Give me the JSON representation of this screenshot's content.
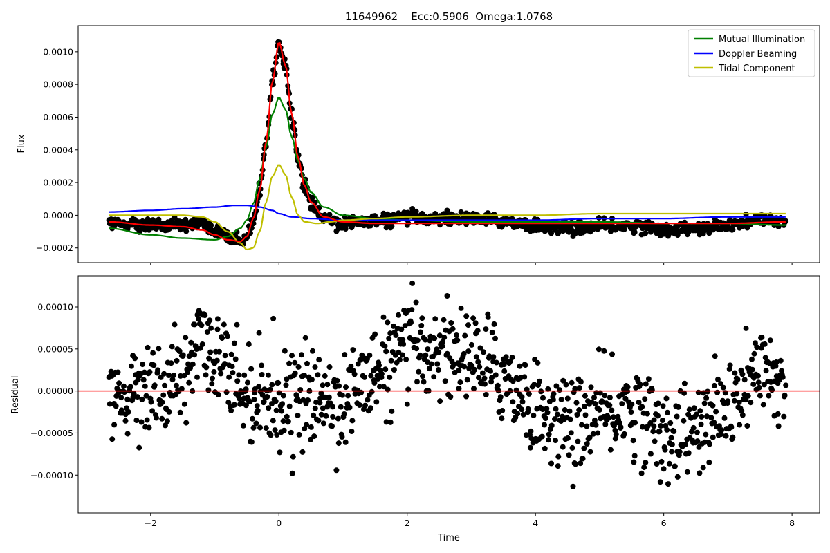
{
  "chart_data": [
    {
      "type": "scatter",
      "title": "11649962    Ecc:0.5906  Omega:1.0768",
      "ylabel": "Flux",
      "xlim": [
        -3.13,
        8.43
      ],
      "ylim": [
        -0.00029,
        0.00116
      ],
      "xticks": [
        -2,
        0,
        2,
        4,
        6,
        8
      ],
      "yticks": [
        -0.0002,
        0.0,
        0.0002,
        0.0004,
        0.0006,
        0.0008,
        0.001
      ],
      "ytick_labels": [
        "−0.0002",
        "0.0000",
        "0.0002",
        "0.0004",
        "0.0006",
        "0.0008",
        "0.0010"
      ],
      "legend_position": "top-right",
      "grid": false,
      "observed_points": {
        "color": "#000000",
        "x_range": [
          -2.65,
          7.9
        ],
        "model_curve_anchors": {
          "x": [
            -2.65,
            -2.0,
            -1.5,
            -1.2,
            -1.0,
            -0.8,
            -0.6,
            -0.5,
            -0.4,
            -0.3,
            -0.2,
            -0.1,
            0.0,
            0.1,
            0.2,
            0.3,
            0.4,
            0.5,
            0.7,
            1.0,
            1.5,
            2.0,
            3.0,
            4.0,
            5.0,
            6.0,
            7.0,
            7.9
          ],
          "y": [
            -4e-05,
            -6e-05,
            -7e-05,
            -9e-05,
            -0.00012,
            -0.00015,
            -0.00016,
            -0.00013,
            -2e-05,
            0.00015,
            0.00045,
            0.00082,
            0.00106,
            0.00092,
            0.00062,
            0.00035,
            0.00018,
            8e-05,
            -1e-05,
            -4e-05,
            -5e-05,
            -5e-05,
            -5e-05,
            -5e-05,
            -5e-05,
            -5e-05,
            -5e-05,
            -4e-05
          ]
        }
      },
      "series": [
        {
          "name": "Mutual Illumination",
          "color": "#008000",
          "x": [
            -2.65,
            -2.0,
            -1.5,
            -1.0,
            -0.8,
            -0.6,
            -0.5,
            -0.4,
            -0.3,
            -0.2,
            -0.1,
            0.0,
            0.1,
            0.2,
            0.3,
            0.4,
            0.5,
            0.7,
            1.0,
            1.5,
            2.0,
            3.0,
            4.0,
            5.0,
            6.0,
            7.0,
            7.9
          ],
          "y": [
            -8e-05,
            -0.00012,
            -0.00014,
            -0.00015,
            -0.00013,
            -8e-05,
            -3e-05,
            7e-05,
            0.00022,
            0.00042,
            0.00062,
            0.00072,
            0.00065,
            0.00048,
            0.00033,
            0.00022,
            0.00014,
            5e-05,
            0.0,
            -2e-05,
            -3e-05,
            -4e-05,
            -4e-05,
            -4e-05,
            -5e-05,
            -5e-05,
            -6e-05
          ]
        },
        {
          "name": "Doppler Beaming",
          "color": "#0000ff",
          "x": [
            -2.65,
            -2.0,
            -1.5,
            -1.0,
            -0.7,
            -0.5,
            -0.3,
            -0.1,
            0.0,
            0.2,
            0.5,
            1.0,
            2.0,
            3.0,
            4.0,
            5.0,
            6.0,
            7.0,
            7.9
          ],
          "y": [
            2e-05,
            3e-05,
            4e-05,
            5e-05,
            6e-05,
            6e-05,
            5e-05,
            3e-05,
            1e-05,
            -1e-05,
            -2e-05,
            -3e-05,
            -3e-05,
            -3e-05,
            -3e-05,
            -2e-05,
            -2e-05,
            -1e-05,
            -1e-05
          ]
        },
        {
          "name": "Tidal Component",
          "color": "#bfbf00",
          "x": [
            -2.65,
            -2.0,
            -1.5,
            -1.2,
            -1.0,
            -0.8,
            -0.6,
            -0.5,
            -0.4,
            -0.3,
            -0.2,
            -0.1,
            0.0,
            0.1,
            0.2,
            0.3,
            0.4,
            0.6,
            0.8,
            1.0,
            1.5,
            2.0,
            3.0,
            4.0,
            5.0,
            6.0,
            7.0,
            7.9
          ],
          "y": [
            0.0,
            0.0,
            0.0,
            -1e-05,
            -4e-05,
            -0.0001,
            -0.00017,
            -0.00021,
            -0.0002,
            -0.0001,
            8e-05,
            0.00024,
            0.00031,
            0.00025,
            0.00011,
            0.0,
            -4e-05,
            -5e-05,
            -4e-05,
            -3e-05,
            -2e-05,
            -1e-05,
            0.0,
            0.0,
            1e-05,
            1e-05,
            1e-05,
            1e-05
          ]
        },
        {
          "color": "#ff0000",
          "x": [
            -2.65,
            -2.0,
            -1.5,
            -1.2,
            -1.0,
            -0.8,
            -0.6,
            -0.5,
            -0.4,
            -0.3,
            -0.2,
            -0.1,
            0.0,
            0.1,
            0.2,
            0.3,
            0.4,
            0.5,
            0.7,
            1.0,
            1.5,
            2.0,
            3.0,
            4.0,
            5.0,
            6.0,
            7.0,
            7.9
          ],
          "y": [
            -4e-05,
            -6e-05,
            -7e-05,
            -9e-05,
            -0.00012,
            -0.00015,
            -0.00016,
            -0.00013,
            -2e-05,
            0.00015,
            0.00045,
            0.00082,
            0.00106,
            0.00092,
            0.00062,
            0.00035,
            0.00018,
            8e-05,
            -1e-05,
            -4e-05,
            -5e-05,
            -5e-05,
            -5e-05,
            -5e-05,
            -5e-05,
            -5e-05,
            -5e-05,
            -4e-05
          ]
        }
      ]
    },
    {
      "type": "scatter",
      "xlabel": "Time",
      "ylabel": "Residual",
      "xlim": [
        -3.13,
        8.43
      ],
      "ylim": [
        -0.000145,
        0.000137
      ],
      "xticks": [
        -2,
        0,
        2,
        4,
        6,
        8
      ],
      "xtick_labels": [
        "−2",
        "0",
        "2",
        "4",
        "6",
        "8"
      ],
      "yticks": [
        -0.0001,
        -5e-05,
        0.0,
        5e-05,
        0.0001
      ],
      "ytick_labels": [
        "−0.00010",
        "−0.00005",
        "0.00000",
        "0.00005",
        "0.00010"
      ],
      "grid": false,
      "zero_line": {
        "y": 0.0,
        "color": "#ff0000"
      },
      "points": {
        "color": "#000000",
        "x_range": [
          -2.65,
          7.9
        ],
        "trend_anchors": {
          "x": [
            -2.65,
            -2.0,
            -1.5,
            -1.2,
            -1.0,
            -0.5,
            0.0,
            0.5,
            1.0,
            1.5,
            2.0,
            2.5,
            3.0,
            3.5,
            4.0,
            4.5,
            5.0,
            5.5,
            6.0,
            6.5,
            7.0,
            7.5,
            7.9
          ],
          "y": [
            0.0,
            0.0,
            2e-05,
            6e-05,
            3e-05,
            0.0,
            -1e-05,
            -1e-05,
            -1e-05,
            2e-05,
            5e-05,
            5e-05,
            4e-05,
            2e-05,
            -2e-05,
            -4e-05,
            -3e-05,
            -2e-05,
            -5e-05,
            -5e-05,
            -2e-05,
            2e-05,
            1e-05
          ]
        },
        "noise_sd": 2.8e-05
      }
    }
  ]
}
